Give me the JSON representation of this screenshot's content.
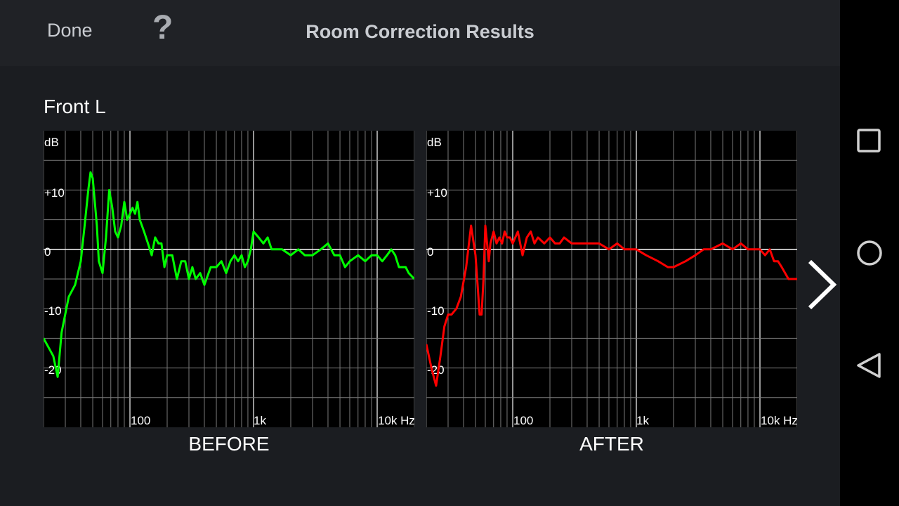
{
  "header": {
    "done_label": "Done",
    "help_label": "?",
    "title": "Room Correction Results"
  },
  "channel": {
    "label": "Front L"
  },
  "charts": {
    "y_unit": "dB",
    "y_ticks": [
      "+10",
      "0",
      "-10",
      "-20"
    ],
    "x_ticks": [
      "100",
      "1k",
      "10k Hz"
    ],
    "before_caption": "BEFORE",
    "after_caption": "AFTER"
  },
  "colors": {
    "background": "#1b1d21",
    "header": "#202226",
    "before_curve": "#00ff00",
    "after_curve": "#ff0000",
    "grid": "#7a7a7a"
  },
  "icons": {
    "help": "question-mark-icon",
    "next": "chevron-right-icon",
    "recents": "square-icon",
    "home": "circle-icon",
    "back": "triangle-back-icon"
  },
  "chart_data": [
    {
      "type": "line",
      "title": "BEFORE",
      "xlabel": "Hz",
      "ylabel": "dB",
      "xscale": "log",
      "xlim": [
        20,
        20000
      ],
      "ylim": [
        -30,
        20
      ],
      "x_ticks": [
        "100",
        "1k",
        "10k Hz"
      ],
      "y_ticks": [
        "+10",
        "0",
        "-10",
        "-20"
      ],
      "grid": true,
      "series": [
        {
          "color": "#00ff00",
          "x": [
            20,
            24,
            26,
            28,
            32,
            36,
            40,
            43,
            46,
            48,
            50,
            52,
            54,
            56,
            60,
            64,
            68,
            72,
            76,
            80,
            85,
            90,
            95,
            100,
            105,
            110,
            115,
            120,
            130,
            140,
            150,
            160,
            170,
            180,
            190,
            200,
            220,
            240,
            260,
            280,
            300,
            320,
            340,
            370,
            400,
            450,
            500,
            550,
            600,
            650,
            700,
            750,
            800,
            850,
            900,
            950,
            1000,
            1100,
            1200,
            1300,
            1400,
            1500,
            1700,
            2000,
            2300,
            2600,
            3000,
            3500,
            4000,
            4500,
            5000,
            5500,
            6000,
            7000,
            8000,
            9000,
            10000,
            11000,
            12000,
            13000,
            14000,
            15000,
            16000,
            17000,
            18000,
            20000
          ],
          "y": [
            -15,
            -18,
            -21.5,
            -14,
            -8,
            -6,
            -2,
            4,
            10,
            13,
            12,
            8,
            4,
            -2,
            -4,
            2,
            10,
            7,
            3,
            2,
            4,
            8,
            5,
            6,
            7,
            6,
            8,
            5,
            3,
            1,
            -1,
            2,
            1,
            1,
            -3,
            -1,
            -1,
            -5,
            -2,
            -2,
            -5,
            -3,
            -5,
            -4,
            -6,
            -3,
            -3,
            -2,
            -4,
            -2,
            -1,
            -2,
            -1,
            -3,
            -2,
            0,
            3,
            2,
            1,
            2,
            0,
            0,
            0,
            -1,
            0,
            -1,
            -1,
            0,
            1,
            -1,
            -1,
            -3,
            -2,
            -1,
            -2,
            -1,
            -1,
            -2,
            -1,
            0,
            -1,
            -3,
            -3,
            -3,
            -4,
            -5
          ]
        }
      ]
    },
    {
      "type": "line",
      "title": "AFTER",
      "xlabel": "Hz",
      "ylabel": "dB",
      "xscale": "log",
      "xlim": [
        20,
        20000
      ],
      "ylim": [
        -30,
        20
      ],
      "x_ticks": [
        "100",
        "1k",
        "10k Hz"
      ],
      "y_ticks": [
        "+10",
        "0",
        "-10",
        "-20"
      ],
      "grid": true,
      "series": [
        {
          "color": "#ff0000",
          "x": [
            20,
            22,
            24,
            26,
            28,
            30,
            32,
            35,
            38,
            42,
            46,
            50,
            52,
            54,
            56,
            58,
            60,
            62,
            64,
            66,
            70,
            74,
            78,
            82,
            86,
            90,
            95,
            100,
            110,
            120,
            130,
            140,
            150,
            160,
            180,
            200,
            220,
            240,
            260,
            300,
            350,
            400,
            450,
            500,
            600,
            700,
            800,
            900,
            1000,
            1200,
            1500,
            1800,
            2000,
            2500,
            3000,
            3500,
            4000,
            5000,
            6000,
            7000,
            8000,
            9000,
            10000,
            11000,
            12000,
            13000,
            14000,
            15000,
            16000,
            17000,
            18000,
            20000
          ],
          "y": [
            -16,
            -20,
            -23,
            -18,
            -13,
            -11,
            -11,
            -10,
            -8,
            -3,
            4,
            -1,
            -6,
            -11,
            -11,
            -5,
            4,
            1,
            -2,
            1,
            3,
            1,
            2,
            1,
            3,
            2,
            2,
            1,
            3,
            -1,
            2,
            3,
            1,
            2,
            1,
            2,
            1,
            1,
            2,
            1,
            1,
            1,
            1,
            1,
            0,
            1,
            0,
            0,
            0,
            -1,
            -2,
            -3,
            -3,
            -2,
            -1,
            0,
            0,
            1,
            0,
            1,
            0,
            0,
            0,
            -1,
            0,
            -2,
            -2,
            -3,
            -4,
            -5,
            -5,
            -5
          ]
        }
      ]
    }
  ]
}
